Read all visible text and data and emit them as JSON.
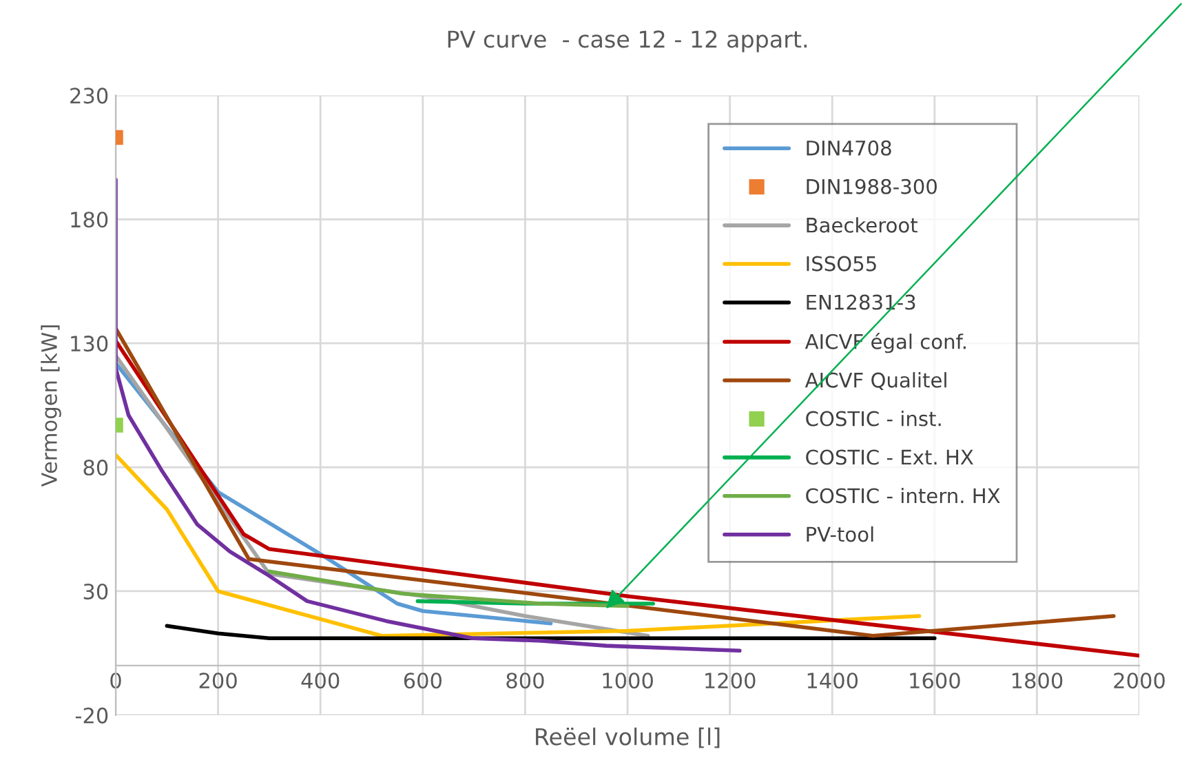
{
  "chart_data": {
    "type": "line",
    "title": "PV curve  - case 12 - 12 appart.",
    "xlabel": "Reëel volume [l]",
    "ylabel": "Vermogen [kW]",
    "xlim": [
      0,
      2000
    ],
    "xticks": [
      0,
      200,
      400,
      600,
      800,
      1000,
      1200,
      1400,
      1600,
      1800,
      2000
    ],
    "ylim": [
      -20,
      230
    ],
    "yticks": [
      -20,
      30,
      80,
      130,
      180,
      230
    ],
    "grid": true,
    "legend": "top right",
    "series": [
      {
        "name": "DIN4708",
        "color": "#5b9bd5",
        "x": [
          0,
          200,
          400,
          550,
          600,
          850
        ],
        "values": [
          122,
          70,
          45,
          25,
          22,
          17
        ]
      },
      {
        "name": "DIN1988-300",
        "type": "scatter",
        "marker": "square",
        "color": "#ed7d31",
        "x": [
          0
        ],
        "values": [
          213
        ]
      },
      {
        "name": "Baeckeroot",
        "color": "#a5a5a5",
        "x": [
          0,
          300,
          600,
          800,
          1040
        ],
        "values": [
          125,
          37,
          28,
          20,
          12
        ]
      },
      {
        "name": "ISSO55",
        "color": "#ffc000",
        "x": [
          0,
          100,
          200,
          520,
          1000,
          1570
        ],
        "values": [
          85,
          63,
          30,
          12,
          14,
          20
        ]
      },
      {
        "name": "EN12831-3",
        "color": "#000000",
        "x": [
          100,
          200,
          300,
          1600
        ],
        "values": [
          16,
          13,
          11,
          11
        ]
      },
      {
        "name": "AICVF égal conf.",
        "color": "#c00000",
        "x": [
          0,
          250,
          300,
          1000,
          2000
        ],
        "values": [
          131,
          53,
          47,
          28,
          4
        ]
      },
      {
        "name": "AICVF Qualitel",
        "color": "#9e480e",
        "x": [
          0,
          260,
          1480,
          1950
        ],
        "values": [
          136,
          43,
          12,
          20
        ]
      },
      {
        "name": "COSTIC - inst.",
        "type": "scatter",
        "marker": "square",
        "color": "#92d050",
        "x": [
          0
        ],
        "values": [
          97
        ]
      },
      {
        "name": "COSTIC - Ext. HX",
        "color": "#00b050",
        "x": [
          590,
          800,
          1050
        ],
        "values": [
          26,
          25,
          25
        ]
      },
      {
        "name": "COSTIC - intern. HX",
        "color": "#70ad47",
        "x": [
          300,
          560,
          830,
          1000
        ],
        "values": [
          38,
          29,
          25,
          24
        ]
      },
      {
        "name": "PV-tool",
        "color": "#7030a0",
        "x": [
          0,
          0,
          25,
          89,
          159,
          223,
          294,
          374,
          528,
          697,
          832,
          958,
          1219
        ],
        "values": [
          196,
          120,
          101,
          79,
          57,
          46,
          37,
          26,
          18,
          11,
          10,
          8,
          6
        ]
      }
    ]
  }
}
